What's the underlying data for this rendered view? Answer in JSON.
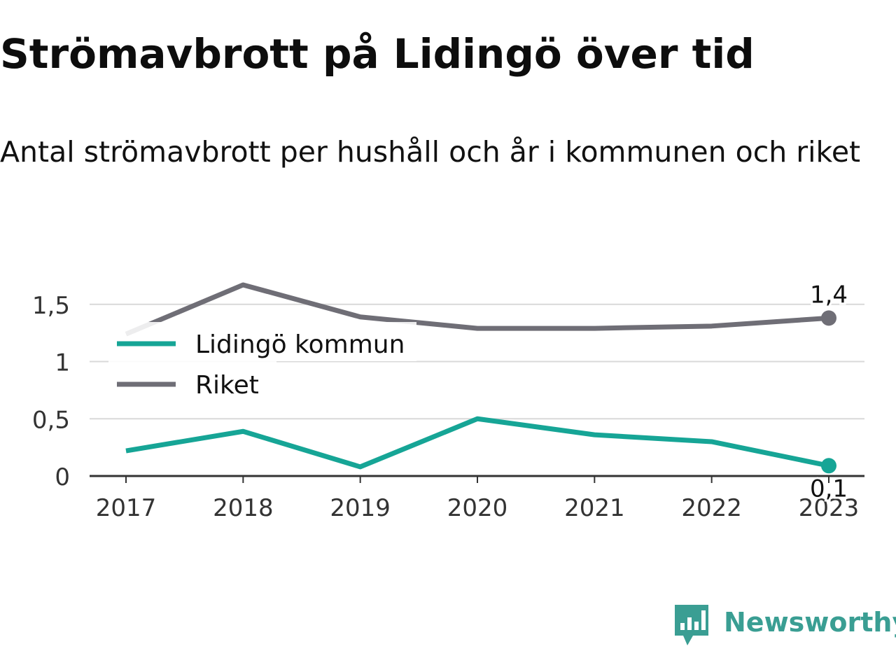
{
  "title": "Strömavbrott på Lidingö över tid",
  "subtitle": "Antal strömavbrott per hushåll och år i kommunen och riket",
  "brand": "Newsworthy",
  "colors": {
    "lidingo": "#16a596",
    "riket": "#6f6e76",
    "grid": "#d9d9d9",
    "axis": "#333333",
    "brand": "#3a9e93"
  },
  "chart_data": {
    "type": "line",
    "x": [
      "2017",
      "2018",
      "2019",
      "2020",
      "2021",
      "2022",
      "2023"
    ],
    "ylim": [
      0,
      1.6
    ],
    "yticks": [
      0,
      0.5,
      1,
      1.5
    ],
    "ytick_labels": [
      "0",
      "0,5",
      "1",
      "1,5"
    ],
    "grid": true,
    "legend_position": "top-left",
    "series": [
      {
        "name": "Lidingö kommun",
        "values": [
          0.22,
          0.39,
          0.08,
          0.5,
          0.36,
          0.3,
          0.09
        ],
        "end_label": "0,1"
      },
      {
        "name": "Riket",
        "values": [
          1.24,
          1.67,
          1.39,
          1.29,
          1.29,
          1.31,
          1.38
        ],
        "end_label": "1,4"
      }
    ]
  }
}
